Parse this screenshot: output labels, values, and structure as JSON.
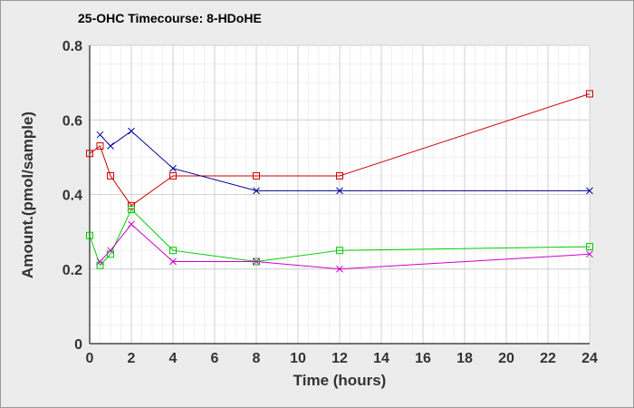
{
  "chart_data": {
    "type": "line",
    "title": "25-OHC Timecourse: 8-HDoHE",
    "xlabel": "Time (hours)",
    "ylabel": "Amount.(pmol/sample)",
    "xlim": [
      0,
      24
    ],
    "ylim": [
      0,
      0.8
    ],
    "x_ticks": [
      0,
      2,
      4,
      6,
      8,
      10,
      12,
      14,
      16,
      18,
      20,
      22,
      24
    ],
    "y_ticks": [
      0,
      0.2,
      0.4,
      0.6,
      0.8
    ],
    "y_tick_labels": [
      "0",
      "0.2",
      "0.4",
      "0.6",
      "0.8"
    ],
    "grid": true,
    "legend": "none",
    "series": [
      {
        "color": "#cc0000",
        "marker": "square",
        "x": [
          0,
          0.5,
          1,
          2,
          4,
          8,
          12,
          24
        ],
        "values": [
          0.51,
          0.53,
          0.45,
          0.37,
          0.45,
          0.45,
          0.45,
          0.67
        ]
      },
      {
        "color": "#000099",
        "marker": "x",
        "x": [
          0.5,
          1,
          2,
          4,
          8,
          12,
          24
        ],
        "values": [
          0.56,
          0.53,
          0.57,
          0.47,
          0.41,
          0.41,
          0.41
        ]
      },
      {
        "color": "#00cc00",
        "marker": "square",
        "x": [
          0,
          0.5,
          1,
          2,
          4,
          8,
          12,
          24
        ],
        "values": [
          0.29,
          0.21,
          0.24,
          0.36,
          0.25,
          0.22,
          0.25,
          0.26
        ]
      },
      {
        "color": "#cc00cc",
        "marker": "x",
        "x": [
          0.5,
          1,
          2,
          4,
          8,
          12,
          24
        ],
        "values": [
          0.22,
          0.25,
          0.32,
          0.22,
          0.22,
          0.2,
          0.24
        ]
      }
    ]
  }
}
